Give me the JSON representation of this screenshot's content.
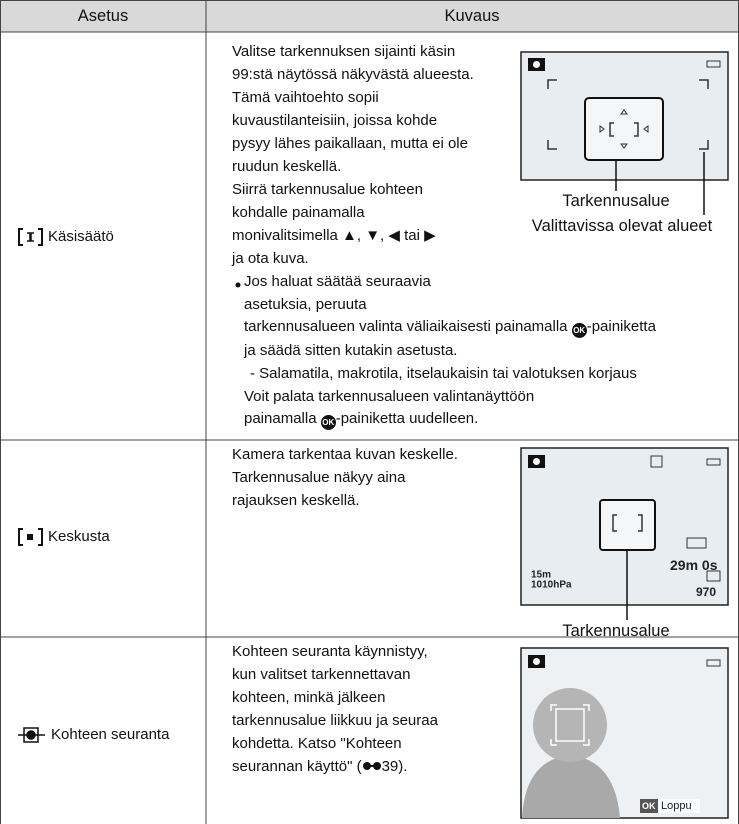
{
  "table": {
    "headers": [
      "Asetus",
      "Kuvaus"
    ],
    "rows": [
      {
        "setting": "Käsisäätö",
        "lines": [
          "Valitse tarkennuksen sijainti käsin",
          "99:stä näytössä näkyvästä alueesta.",
          "Tämä vaihtoehto sopii",
          "kuvaustilanteisiin, joissa kohde",
          "pysyy lähes paikallaan, mutta ei ole",
          "ruudun keskellä.",
          "Siirrä tarkennusalue kohteen",
          "kohdalle painamalla",
          "monivalitsimella ▲, ▼, ◀ tai ▶",
          "ja ota kuva.",
          "Jos haluat säätää seuraavia",
          "asetuksia, peruuta",
          [
            "tarkennusalueen valinta väliaikaisesti painamalla ",
            "-painiketta"
          ],
          "ja säädä sitten kutakin asetusta.",
          "-  Salamatila, makrotila, itselaukaisin tai valotuksen korjaus",
          "Voit palata tarkennusalueen valintanäyttöön",
          [
            "painamalla ",
            "-painiketta uudelleen."
          ]
        ],
        "captions": [
          "Tarkennusalue",
          "Valittavissa olevat alueet"
        ]
      },
      {
        "setting": "Keskusta",
        "lines": [
          "Kamera tarkentaa kuvan keskelle.",
          "Tarkennusalue näkyy aina",
          "rajauksen keskellä."
        ],
        "captions": [
          "Tarkennusalue"
        ],
        "screen_texts": [
          "15m",
          "1010hPa",
          "29m 0s",
          "970"
        ]
      },
      {
        "setting": "Kohteen seuranta",
        "lines": [
          "Kohteen seuranta käynnistyy,",
          "kun valitset tarkennettavan",
          "kohteen, minkä jälkeen",
          "tarkennusalue liikkuu ja seuraa",
          "kohdetta. Katso \"Kohteen",
          [
            "seurannan käyttö\" (",
            "39)."
          ]
        ],
        "screen_texts": [
          "OK",
          "Loppu"
        ]
      }
    ]
  }
}
